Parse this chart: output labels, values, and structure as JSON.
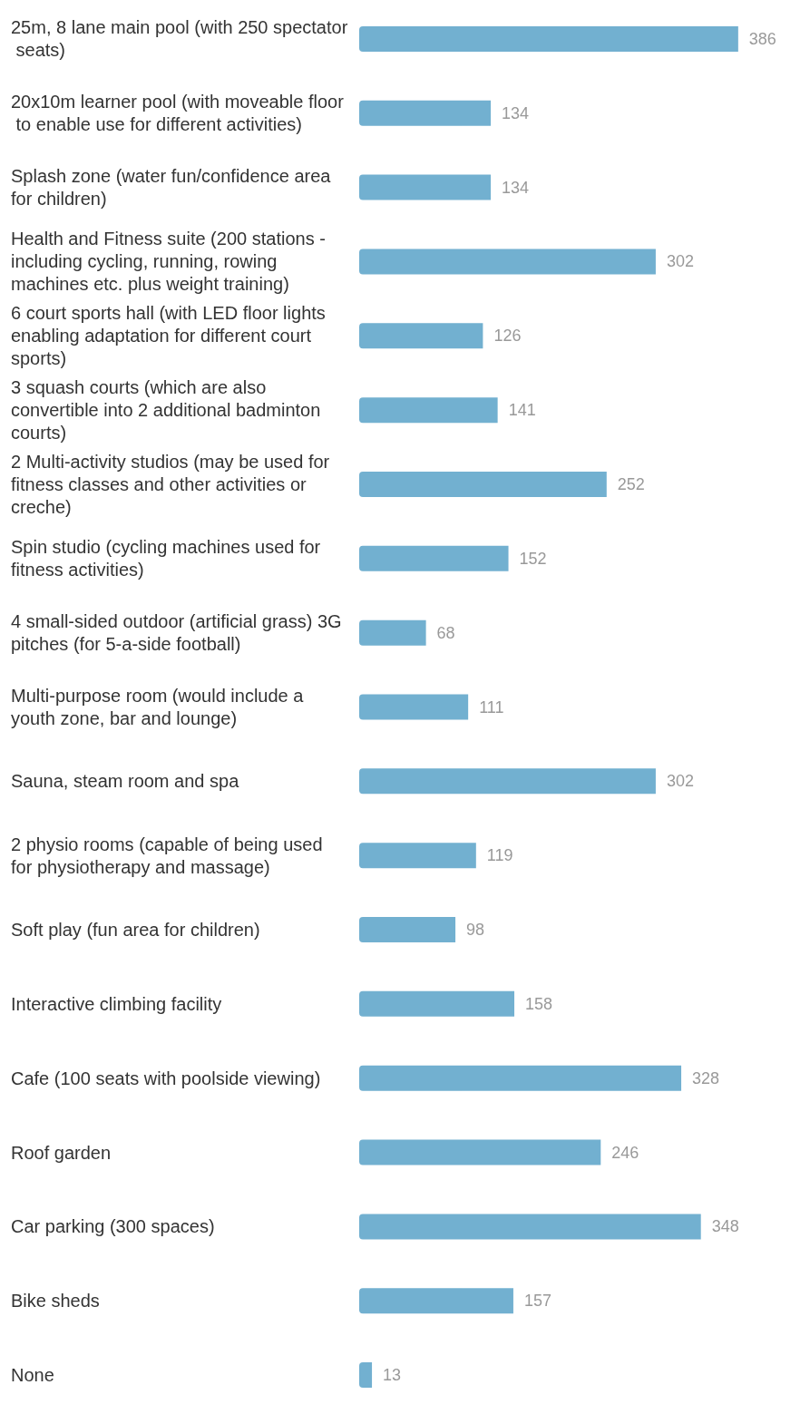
{
  "chart_data": {
    "type": "bar",
    "orientation": "horizontal",
    "categories": [
      "25m, 8 lane main pool (with 250 spectator seats)",
      "20x10m learner pool (with moveable floor to enable use for different activities)",
      "Splash zone (water fun/confidence area for children)",
      "Health and Fitness suite (200 stations - including cycling, running, rowing machines etc. plus weight training)",
      "6 court sports hall (with LED floor lights enabling adaptation for different court sports)",
      "3 squash courts (which are also convertible into 2 additional badminton courts)",
      "2 Multi-activity studios (may be used for fitness classes and other activities or creche)",
      "Spin studio (cycling machines used for fitness activities)",
      "4 small-sided outdoor (artificial grass) 3G pitches (for 5-a-side football)",
      "Multi-purpose room (would include a youth zone, bar and lounge)",
      "Sauna, steam room and spa",
      "2 physio rooms (capable of being used for physiotherapy and massage)",
      "Soft play (fun area for children)",
      "Interactive climbing facility",
      "Cafe (100 seats with poolside viewing)",
      "Roof garden",
      "Car parking (300 spaces)",
      "Bike sheds",
      "None"
    ],
    "values": [
      386,
      134,
      134,
      302,
      126,
      141,
      252,
      152,
      68,
      111,
      302,
      119,
      98,
      158,
      328,
      246,
      348,
      157,
      13
    ],
    "color": "#72b0d0",
    "tick_labels": "y",
    "data_labels": true
  }
}
